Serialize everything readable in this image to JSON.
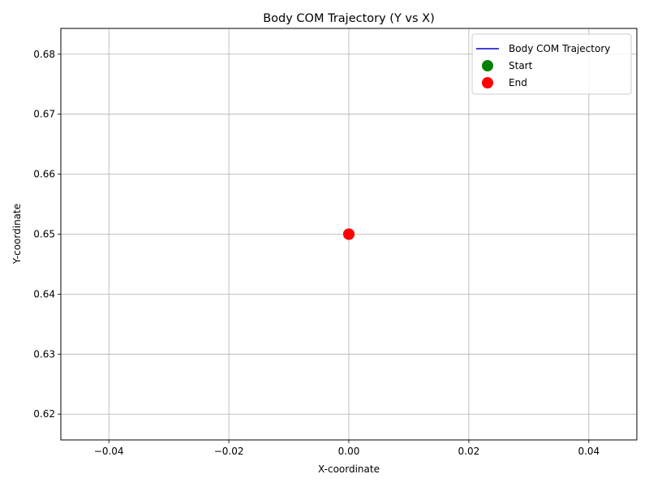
{
  "chart_data": {
    "type": "line",
    "title": "Body COM Trajectory (Y vs X)",
    "xlabel": "X-coordinate",
    "ylabel": "Y-coordinate",
    "xlim": [
      -0.048,
      0.048
    ],
    "ylim": [
      0.6157,
      0.6843
    ],
    "xticks": [
      -0.04,
      -0.02,
      0.0,
      0.02,
      0.04
    ],
    "xtick_labels": [
      "−0.04",
      "−0.02",
      "0.00",
      "0.02",
      "0.04"
    ],
    "yticks": [
      0.62,
      0.63,
      0.64,
      0.65,
      0.66,
      0.67,
      0.68
    ],
    "ytick_labels": [
      "0.62",
      "0.63",
      "0.64",
      "0.65",
      "0.66",
      "0.67",
      "0.68"
    ],
    "grid": true,
    "legend_position": "top-right",
    "series": [
      {
        "name": "Body COM Trajectory",
        "kind": "line",
        "color": "#0000cc",
        "x": [
          0.0
        ],
        "y": [
          0.65
        ]
      },
      {
        "name": "Start",
        "kind": "marker",
        "color": "#008000",
        "x": [
          0.0
        ],
        "y": [
          0.65
        ]
      },
      {
        "name": "End",
        "kind": "marker",
        "color": "#ff0000",
        "x": [
          0.0
        ],
        "y": [
          0.65
        ]
      }
    ]
  }
}
